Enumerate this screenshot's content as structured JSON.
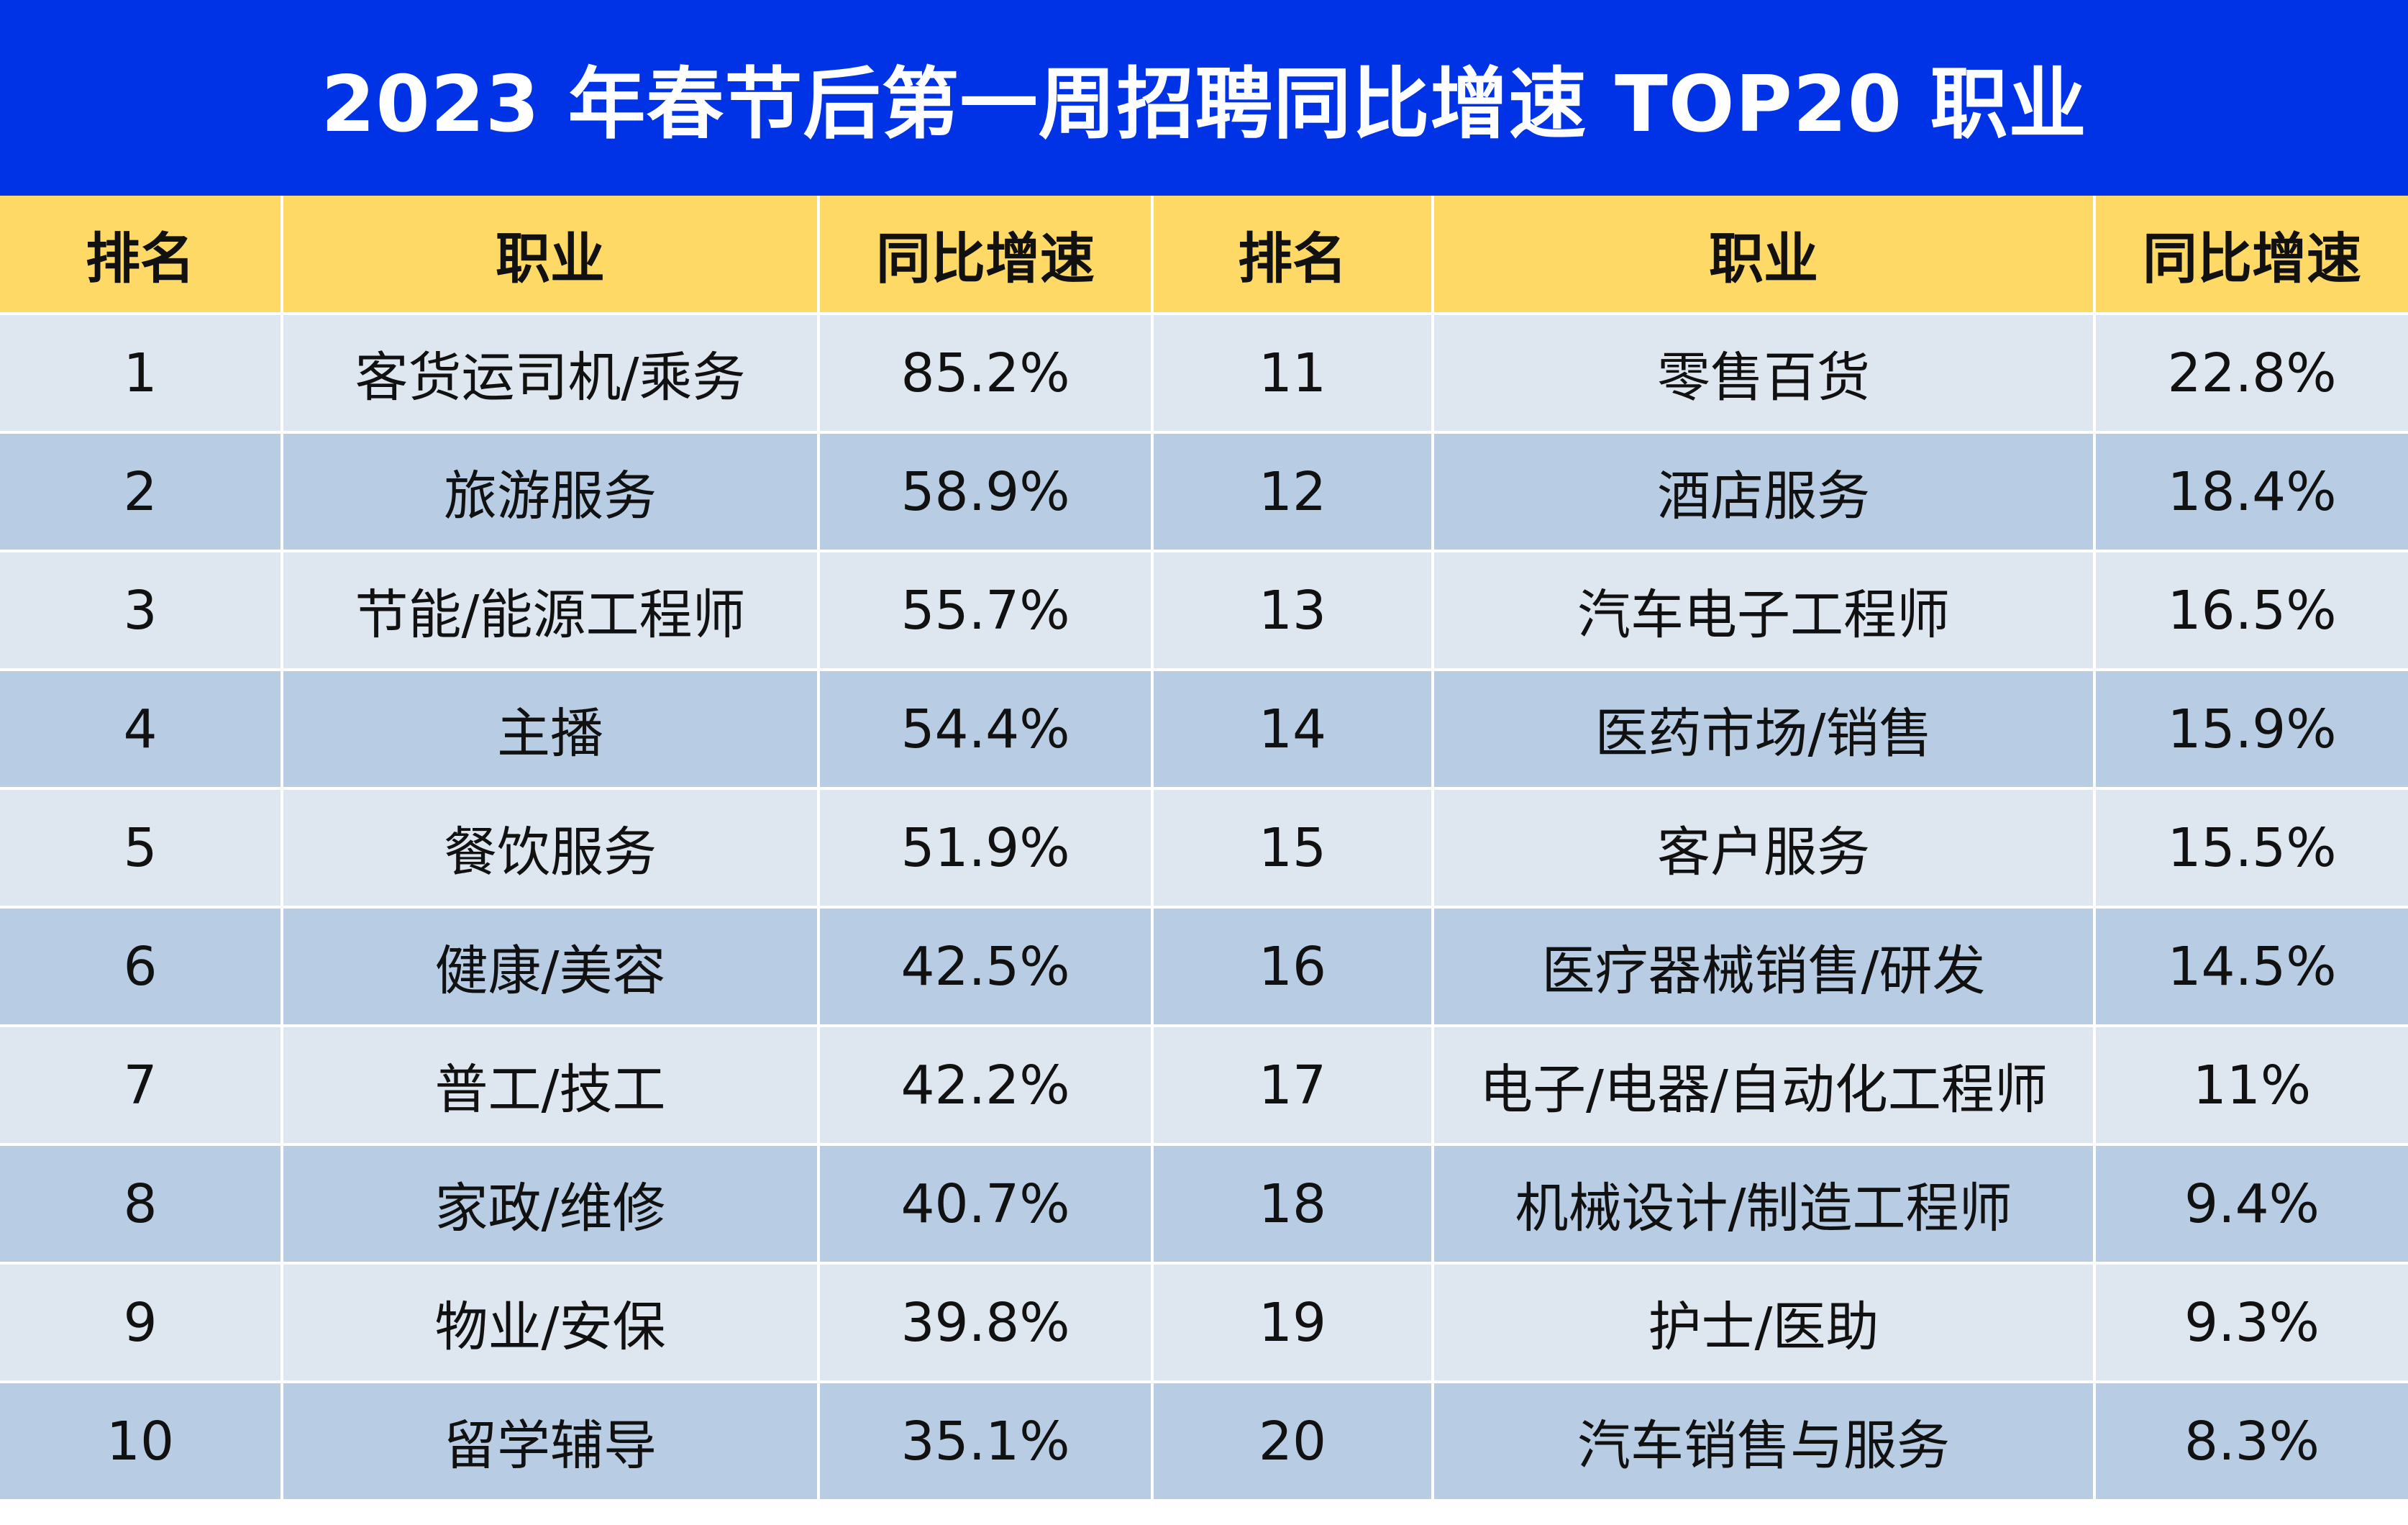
{
  "title": "2023 年春节后第一周招聘同比增速 TOP20 职业",
  "colors": {
    "banner": "#0033E6",
    "header": "#FFD966",
    "row_light": "#DEE6EF",
    "row_dark": "#B8CCE4"
  },
  "chart_data": {
    "type": "table",
    "title": "2023 年春节后第一周招聘同比增速 TOP20 职业",
    "columns": [
      "排名",
      "职业",
      "同比增速",
      "排名",
      "职业",
      "同比增速"
    ],
    "rows": [
      [
        "1",
        "客货运司机/乘务",
        "85.2%",
        "11",
        "零售百货",
        "22.8%"
      ],
      [
        "2",
        "旅游服务",
        "58.9%",
        "12",
        "酒店服务",
        "18.4%"
      ],
      [
        "3",
        "节能/能源工程师",
        "55.7%",
        "13",
        "汽车电子工程师",
        "16.5%"
      ],
      [
        "4",
        "主播",
        "54.4%",
        "14",
        "医药市场/销售",
        "15.9%"
      ],
      [
        "5",
        "餐饮服务",
        "51.9%",
        "15",
        "客户服务",
        "15.5%"
      ],
      [
        "6",
        "健康/美容",
        "42.5%",
        "16",
        "医疗器械销售/研发",
        "14.5%"
      ],
      [
        "7",
        "普工/技工",
        "42.2%",
        "17",
        "电子/电器/自动化工程师",
        "11%"
      ],
      [
        "8",
        "家政/维修",
        "40.7%",
        "18",
        "机械设计/制造工程师",
        "9.4%"
      ],
      [
        "9",
        "物业/安保",
        "39.8%",
        "19",
        "护士/医助",
        "9.3%"
      ],
      [
        "10",
        "留学辅导",
        "35.1%",
        "20",
        "汽车销售与服务",
        "8.3%"
      ]
    ]
  }
}
